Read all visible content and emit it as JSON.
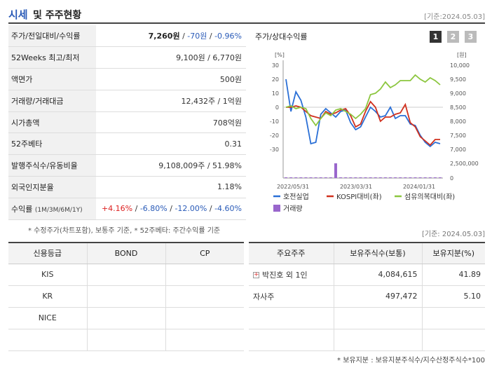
{
  "header": {
    "title_a": "시세",
    "title_b": "및 주주현황",
    "date": "[기준:2024.05.03]"
  },
  "info": {
    "price_label": "주가/전일대비/수익률",
    "price": "7,260원",
    "change": "-70원",
    "change_pct": "-0.96%",
    "w52_label": "52Weeks 최고/최저",
    "w52": "9,100원 / 6,770원",
    "face_label": "액면가",
    "face": "500원",
    "volume_label": "거래량/거래대금",
    "volume": "12,432주 / 1억원",
    "mcap_label": "시가총액",
    "mcap": "708억원",
    "beta_label": "52주베타",
    "beta": "0.31",
    "shares_label": "발행주식수/유동비율",
    "shares": "9,108,009주 / 51.98%",
    "foreign_label": "외국인지분율",
    "foreign": "1.18%",
    "return_label": "수익률",
    "return_period": "(1M/3M/6M/1Y)",
    "r1m": "+4.16%",
    "r3m": "-6.80%",
    "r6m": "-12.00%",
    "r1y": "-4.60%"
  },
  "note1": "* 수정주가(차트포함), 보통주 기준, * 52주베타: 주간수익률 기준",
  "date2": "[기준: 2024.05.03]",
  "chart": {
    "title": "주가/상대수익률",
    "buttons": [
      "1",
      "2",
      "3"
    ],
    "left_unit": "[%]",
    "right_unit": "[원]",
    "left_ticks": [
      "30",
      "20",
      "10",
      "0",
      "-10",
      "-20",
      "-30"
    ],
    "right_ticks": [
      "10,000",
      "9,500",
      "9,000",
      "8,500",
      "8,000",
      "7,500",
      "7,000"
    ],
    "vol_tick_top": "2,500,000",
    "vol_tick_zero": "0",
    "x_ticks": [
      "2022/05/31",
      "2023/03/31",
      "2024/01/31"
    ],
    "legend": [
      "호전실업",
      "KOSPI대비(좌)",
      "섬유의복대비(좌)",
      "거래량"
    ],
    "colors": {
      "stock": "#2a6fd6",
      "kospi": "#d0301e",
      "sector": "#8cc63f",
      "volume": "#9966cc"
    }
  },
  "chart_data": {
    "type": "line",
    "ylim_left": [
      -30,
      30
    ],
    "ylim_right": [
      7000,
      10000
    ],
    "series": [
      {
        "name": "호전실업",
        "values": [
          20,
          -3,
          11,
          5,
          -7,
          -26,
          -25,
          -5,
          -1,
          -4,
          -7,
          -3,
          -2,
          -11,
          -16,
          -14,
          -7,
          0,
          -3,
          -7,
          -6,
          0,
          -8,
          -6,
          -6,
          -12,
          -13,
          -20,
          -25,
          -28,
          -25,
          -26
        ]
      },
      {
        "name": "KOSPI대비(좌)",
        "values": [
          0,
          0,
          1,
          0,
          -3,
          -6,
          -7,
          -8,
          -3,
          -5,
          -4,
          -2,
          -1,
          -6,
          -14,
          -12,
          -3,
          4,
          0,
          -10,
          -7,
          -7,
          -5,
          -4,
          2,
          -11,
          -14,
          -21,
          -24,
          -27,
          -23,
          -23
        ]
      },
      {
        "name": "섬유의복대비(좌)",
        "values": [
          0,
          1,
          -1,
          0,
          -1,
          -8,
          -13,
          -8,
          -4,
          -6,
          -2,
          -1,
          -3,
          -5,
          -8,
          -5,
          -1,
          9,
          10,
          13,
          18,
          14,
          16,
          19,
          19,
          19,
          23,
          20,
          18,
          21,
          19,
          16
        ]
      }
    ],
    "volume_values": [
      0,
      0,
      0,
      0,
      0,
      0,
      0,
      0,
      0,
      0,
      2500000,
      0,
      0,
      0,
      0,
      0,
      0,
      0,
      0,
      0,
      0,
      0,
      0,
      0,
      0,
      0,
      0,
      0,
      0,
      0,
      0,
      0
    ]
  },
  "credit": {
    "headers": [
      "신용등급",
      "BOND",
      "CP"
    ],
    "rows": [
      [
        "KIS",
        "",
        ""
      ],
      [
        "KR",
        "",
        ""
      ],
      [
        "NICE",
        "",
        ""
      ],
      [
        "",
        "",
        ""
      ]
    ]
  },
  "holders": {
    "headers": [
      "주요주주",
      "보유주식수(보통)",
      "보유지분(%)"
    ],
    "rows": [
      {
        "name": "박진호 외 1인",
        "shares": "4,084,615",
        "pct": "41.89",
        "expandable": true
      },
      {
        "name": "자사주",
        "shares": "497,472",
        "pct": "5.10",
        "expandable": false
      },
      {
        "name": "",
        "shares": "",
        "pct": "",
        "expandable": false
      },
      {
        "name": "",
        "shares": "",
        "pct": "",
        "expandable": false
      }
    ]
  },
  "note2": "* 보유지분 : 보유지분주식수/지수산정주식수*100"
}
